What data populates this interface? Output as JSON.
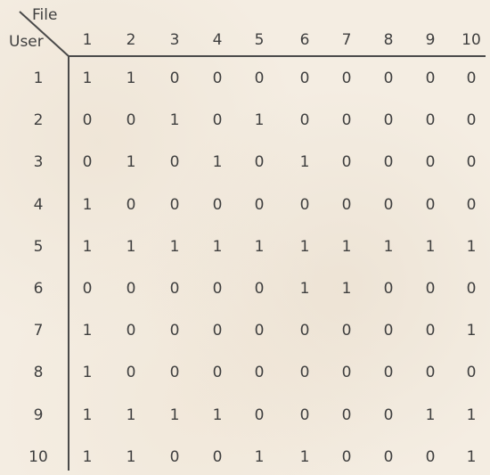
{
  "table": {
    "corner_top_label": "File",
    "corner_left_label": "User",
    "column_headers": [
      "1",
      "2",
      "3",
      "4",
      "5",
      "6",
      "7",
      "8",
      "9",
      "10"
    ],
    "row_headers": [
      "1",
      "2",
      "3",
      "4",
      "5",
      "6",
      "7",
      "8",
      "9",
      "10"
    ],
    "rows": [
      [
        "1",
        "1",
        "0",
        "0",
        "0",
        "0",
        "0",
        "0",
        "0",
        "0"
      ],
      [
        "0",
        "0",
        "1",
        "0",
        "1",
        "0",
        "0",
        "0",
        "0",
        "0"
      ],
      [
        "0",
        "1",
        "0",
        "1",
        "0",
        "1",
        "0",
        "0",
        "0",
        "0"
      ],
      [
        "1",
        "0",
        "0",
        "0",
        "0",
        "0",
        "0",
        "0",
        "0",
        "0"
      ],
      [
        "1",
        "1",
        "1",
        "1",
        "1",
        "1",
        "1",
        "1",
        "1",
        "1"
      ],
      [
        "0",
        "0",
        "0",
        "0",
        "0",
        "1",
        "1",
        "0",
        "0",
        "0"
      ],
      [
        "1",
        "0",
        "0",
        "0",
        "0",
        "0",
        "0",
        "0",
        "0",
        "1"
      ],
      [
        "1",
        "0",
        "0",
        "0",
        "0",
        "0",
        "0",
        "0",
        "0",
        "0"
      ],
      [
        "1",
        "1",
        "1",
        "1",
        "0",
        "0",
        "0",
        "0",
        "1",
        "1"
      ],
      [
        "1",
        "1",
        "0",
        "0",
        "1",
        "1",
        "0",
        "0",
        "0",
        "1"
      ]
    ]
  },
  "colors": {
    "background": "#f4ede2",
    "text": "#3f3f3f",
    "rule": "#444444"
  }
}
